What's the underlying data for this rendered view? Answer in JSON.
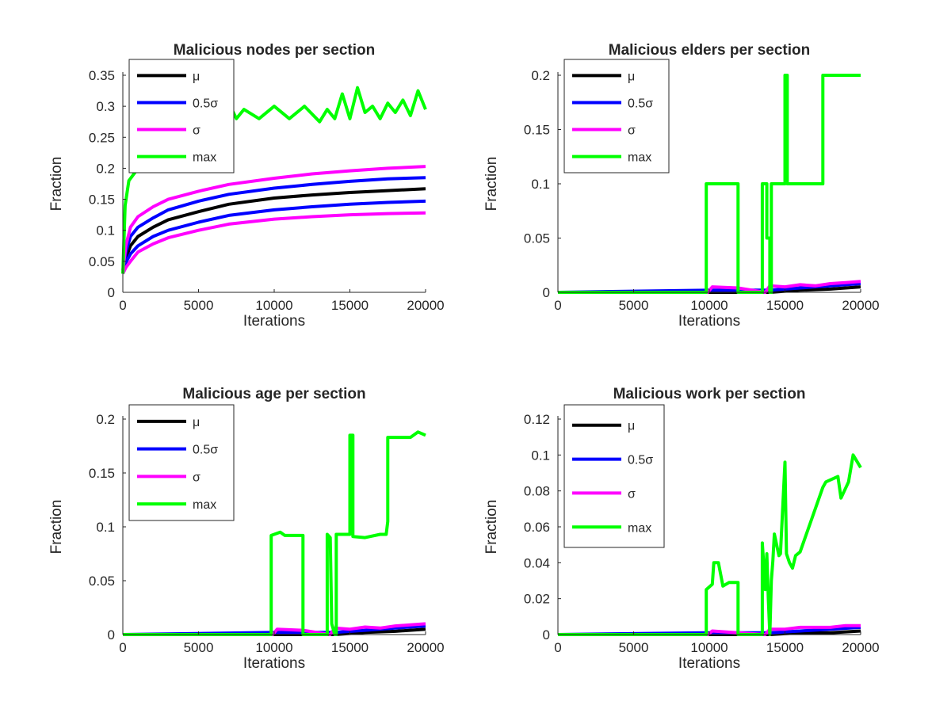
{
  "figure": {
    "background": "#ffffff"
  },
  "chart_data": [
    {
      "type": "line",
      "title": "Malicious nodes per section",
      "xlabel": "Iterations",
      "ylabel": "Fraction",
      "xlim": [
        0,
        20000
      ],
      "ylim": [
        0,
        0.35
      ],
      "xticks": [
        "0",
        "5000",
        "10000",
        "15000",
        "20000"
      ],
      "yticks": [
        "0",
        "0.05",
        "0.1",
        "0.15",
        "0.2",
        "0.25",
        "0.3",
        "0.35"
      ],
      "legend_position": "top-left",
      "series": [
        {
          "name": "μ",
          "color": "#000000",
          "x": [
            0,
            200,
            500,
            1000,
            2000,
            3000,
            5000,
            7000,
            10000,
            12500,
            15000,
            17500,
            20000
          ],
          "y": [
            0.035,
            0.055,
            0.075,
            0.09,
            0.105,
            0.117,
            0.13,
            0.142,
            0.152,
            0.157,
            0.161,
            0.164,
            0.167
          ]
        },
        {
          "name": "0.5σ",
          "color": "#0000ff",
          "x": [
            0,
            200,
            500,
            1000,
            2000,
            3000,
            5000,
            7000,
            10000,
            12500,
            15000,
            17500,
            20000
          ],
          "y": [
            0.035,
            0.065,
            0.09,
            0.105,
            0.12,
            0.133,
            0.147,
            0.158,
            0.168,
            0.174,
            0.179,
            0.183,
            0.185
          ]
        },
        {
          "name": "0.5σ",
          "color": "#0000ff",
          "x": [
            0,
            200,
            500,
            1000,
            2000,
            3000,
            5000,
            7000,
            10000,
            12500,
            15000,
            17500,
            20000
          ],
          "y": [
            0.035,
            0.048,
            0.062,
            0.075,
            0.09,
            0.1,
            0.113,
            0.124,
            0.133,
            0.138,
            0.142,
            0.145,
            0.147
          ]
        },
        {
          "name": "σ",
          "color": "#ff00ff",
          "x": [
            0,
            200,
            500,
            1000,
            2000,
            3000,
            5000,
            7000,
            10000,
            12500,
            15000,
            17500,
            20000
          ],
          "y": [
            0.035,
            0.075,
            0.105,
            0.122,
            0.138,
            0.15,
            0.163,
            0.174,
            0.184,
            0.191,
            0.196,
            0.2,
            0.203
          ]
        },
        {
          "name": "σ",
          "color": "#ff00ff",
          "x": [
            0,
            200,
            500,
            1000,
            2000,
            3000,
            5000,
            7000,
            10000,
            12500,
            15000,
            17500,
            20000
          ],
          "y": [
            0.03,
            0.04,
            0.05,
            0.065,
            0.078,
            0.088,
            0.1,
            0.11,
            0.118,
            0.122,
            0.125,
            0.127,
            0.128
          ]
        },
        {
          "name": "max",
          "color": "#00ff00",
          "x": [
            0,
            150,
            400,
            700,
            1000,
            1500,
            2500,
            3500,
            4500,
            5500,
            6000,
            6500,
            7000,
            7500,
            8000,
            9000,
            10000,
            11000,
            12000,
            13000,
            13500,
            14000,
            14500,
            15000,
            15500,
            16000,
            16500,
            17000,
            17500,
            18000,
            18500,
            19000,
            19500,
            20000
          ],
          "y": [
            0.03,
            0.14,
            0.18,
            0.19,
            0.2,
            0.22,
            0.24,
            0.25,
            0.26,
            0.27,
            0.285,
            0.27,
            0.305,
            0.28,
            0.295,
            0.28,
            0.3,
            0.28,
            0.3,
            0.275,
            0.295,
            0.28,
            0.32,
            0.28,
            0.33,
            0.29,
            0.3,
            0.28,
            0.305,
            0.29,
            0.31,
            0.285,
            0.325,
            0.295
          ]
        }
      ]
    },
    {
      "type": "line",
      "title": "Malicious elders per section",
      "xlabel": "Iterations",
      "ylabel": "Fraction",
      "xlim": [
        0,
        20000
      ],
      "ylim": [
        0,
        0.2
      ],
      "xticks": [
        "0",
        "5000",
        "10000",
        "15000",
        "20000"
      ],
      "yticks": [
        "0",
        "0.05",
        "0.1",
        "0.15",
        "0.2"
      ],
      "legend_position": "top-left",
      "series": [
        {
          "name": "μ",
          "color": "#000000",
          "x": [
            0,
            10000,
            12000,
            14000,
            16000,
            18000,
            20000
          ],
          "y": [
            0,
            0,
            0,
            0,
            0.002,
            0.003,
            0.005
          ]
        },
        {
          "name": "0.5σ",
          "color": "#0000ff",
          "x": [
            0,
            10000,
            12000,
            14000,
            16000,
            18000,
            20000
          ],
          "y": [
            0,
            0.002,
            0.002,
            0.002,
            0.004,
            0.006,
            0.008
          ]
        },
        {
          "name": "σ",
          "color": "#ff00ff",
          "x": [
            0,
            9900,
            10200,
            11900,
            13700,
            14000,
            15000,
            16000,
            17000,
            18000,
            19000,
            20000
          ],
          "y": [
            0,
            0,
            0.005,
            0.004,
            0,
            0.006,
            0.005,
            0.007,
            0.006,
            0.008,
            0.009,
            0.01
          ]
        },
        {
          "name": "max",
          "color": "#00ff00",
          "x": [
            0,
            9800,
            9800,
            11900,
            11900,
            13500,
            13500,
            13800,
            13800,
            14000,
            14000,
            14100,
            14100,
            15000,
            15000,
            15150,
            15150,
            17500,
            17500,
            20000
          ],
          "y": [
            0,
            0,
            0.1,
            0.1,
            0,
            0,
            0.1,
            0.1,
            0.05,
            0.05,
            0,
            0,
            0.1,
            0.1,
            0.2,
            0.2,
            0.1,
            0.1,
            0.2,
            0.2
          ]
        }
      ]
    },
    {
      "type": "line",
      "title": "Malicious age per section",
      "xlabel": "Iterations",
      "ylabel": "Fraction",
      "xlim": [
        0,
        20000
      ],
      "ylim": [
        0,
        0.2
      ],
      "xticks": [
        "0",
        "5000",
        "10000",
        "15000",
        "20000"
      ],
      "yticks": [
        "0",
        "0.05",
        "0.1",
        "0.15",
        "0.2"
      ],
      "legend_position": "top-left",
      "series": [
        {
          "name": "μ",
          "color": "#000000",
          "x": [
            0,
            10000,
            12000,
            14000,
            16000,
            18000,
            20000
          ],
          "y": [
            0,
            0,
            0,
            0,
            0.002,
            0.003,
            0.005
          ]
        },
        {
          "name": "0.5σ",
          "color": "#0000ff",
          "x": [
            0,
            10000,
            12000,
            14000,
            16000,
            18000,
            20000
          ],
          "y": [
            0,
            0.002,
            0.002,
            0.002,
            0.004,
            0.006,
            0.008
          ]
        },
        {
          "name": "σ",
          "color": "#ff00ff",
          "x": [
            0,
            9900,
            10200,
            11900,
            13700,
            14000,
            15000,
            16000,
            17000,
            18000,
            19000,
            20000
          ],
          "y": [
            0,
            0,
            0.005,
            0.004,
            0,
            0.006,
            0.005,
            0.007,
            0.006,
            0.008,
            0.009,
            0.01
          ]
        },
        {
          "name": "max",
          "color": "#00ff00",
          "x": [
            0,
            9800,
            9800,
            10400,
            10700,
            11900,
            11900,
            13500,
            13500,
            13700,
            13800,
            14000,
            14100,
            14100,
            15000,
            15000,
            15200,
            15200,
            16000,
            17000,
            17400,
            17500,
            17500,
            19000,
            19500,
            20000
          ],
          "y": [
            0,
            0,
            0.092,
            0.095,
            0.092,
            0.092,
            0,
            0,
            0.093,
            0.09,
            0.01,
            0,
            0,
            0.093,
            0.093,
            0.185,
            0.185,
            0.091,
            0.09,
            0.093,
            0.093,
            0.105,
            0.183,
            0.183,
            0.188,
            0.185
          ]
        }
      ]
    },
    {
      "type": "line",
      "title": "Malicious work per section",
      "xlabel": "Iterations",
      "ylabel": "Fraction",
      "xlim": [
        0,
        20000
      ],
      "ylim": [
        0,
        0.12
      ],
      "xticks": [
        "0",
        "5000",
        "10000",
        "15000",
        "20000"
      ],
      "yticks": [
        "0",
        "0.02",
        "0.04",
        "0.06",
        "0.08",
        "0.1",
        "0.12"
      ],
      "legend_position": "top-left",
      "series": [
        {
          "name": "μ",
          "color": "#000000",
          "x": [
            0,
            10000,
            12000,
            14000,
            16000,
            18000,
            20000
          ],
          "y": [
            0,
            0,
            0,
            0,
            0.001,
            0.001,
            0.002
          ]
        },
        {
          "name": "0.5σ",
          "color": "#0000ff",
          "x": [
            0,
            10000,
            12000,
            14000,
            16000,
            18000,
            20000
          ],
          "y": [
            0,
            0.001,
            0.001,
            0.001,
            0.002,
            0.003,
            0.004
          ]
        },
        {
          "name": "σ",
          "color": "#ff00ff",
          "x": [
            0,
            9900,
            10200,
            11900,
            13700,
            14000,
            15000,
            16000,
            17000,
            18000,
            19000,
            20000
          ],
          "y": [
            0,
            0,
            0.002,
            0.001,
            0,
            0.003,
            0.003,
            0.004,
            0.004,
            0.004,
            0.005,
            0.005
          ]
        },
        {
          "name": "max",
          "color": "#00ff00",
          "x": [
            0,
            9800,
            9800,
            10200,
            10300,
            10600,
            10900,
            11300,
            11900,
            11900,
            13500,
            13500,
            13700,
            13800,
            13900,
            14000,
            14100,
            14200,
            14300,
            14600,
            14700,
            15000,
            15100,
            15300,
            15500,
            15700,
            16000,
            17500,
            17700,
            18500,
            18700,
            19200,
            19500,
            20000
          ],
          "y": [
            0,
            0,
            0.025,
            0.028,
            0.04,
            0.04,
            0.027,
            0.029,
            0.029,
            0,
            0,
            0.051,
            0.025,
            0.045,
            0.02,
            0,
            0.03,
            0.041,
            0.056,
            0.044,
            0.045,
            0.096,
            0.045,
            0.04,
            0.037,
            0.044,
            0.046,
            0.082,
            0.085,
            0.088,
            0.076,
            0.085,
            0.1,
            0.093
          ]
        }
      ]
    }
  ]
}
